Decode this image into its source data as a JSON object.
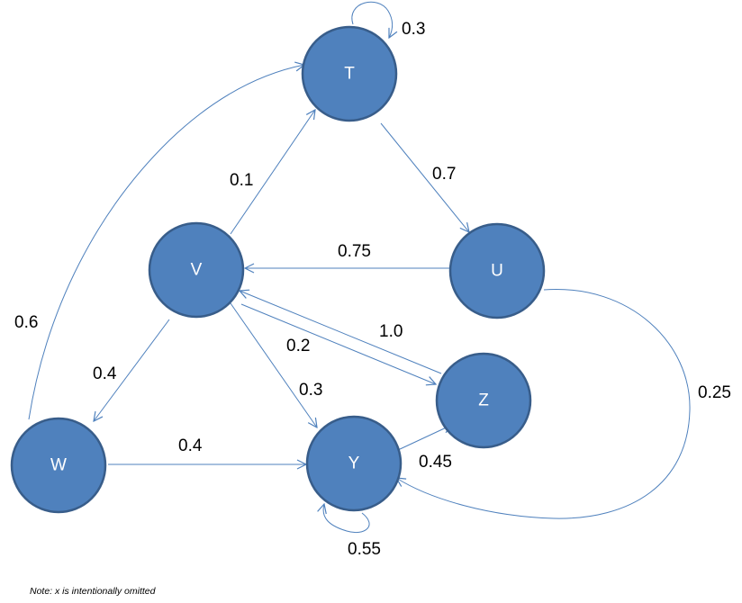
{
  "colors": {
    "node_fill": "#4f81bd",
    "node_stroke": "#385d8a",
    "edge": "#4f81bd",
    "node_text": "#ffffff"
  },
  "nodes": {
    "T": "T",
    "U": "U",
    "V": "V",
    "W": "W",
    "Y": "Y",
    "Z": "Z"
  },
  "edges": {
    "T_T": "0.3",
    "T_U": "0.7",
    "U_V": "0.75",
    "U_Y": "0.25",
    "V_T": "0.1",
    "V_W": "0.4",
    "V_Y": "0.3",
    "V_Z": "0.2",
    "Z_V": "1.0",
    "W_T": "0.6",
    "W_Y": "0.4",
    "Y_Z": "0.45",
    "Y_Y": "0.55"
  },
  "note": "Note:  x is intentionally omitted"
}
